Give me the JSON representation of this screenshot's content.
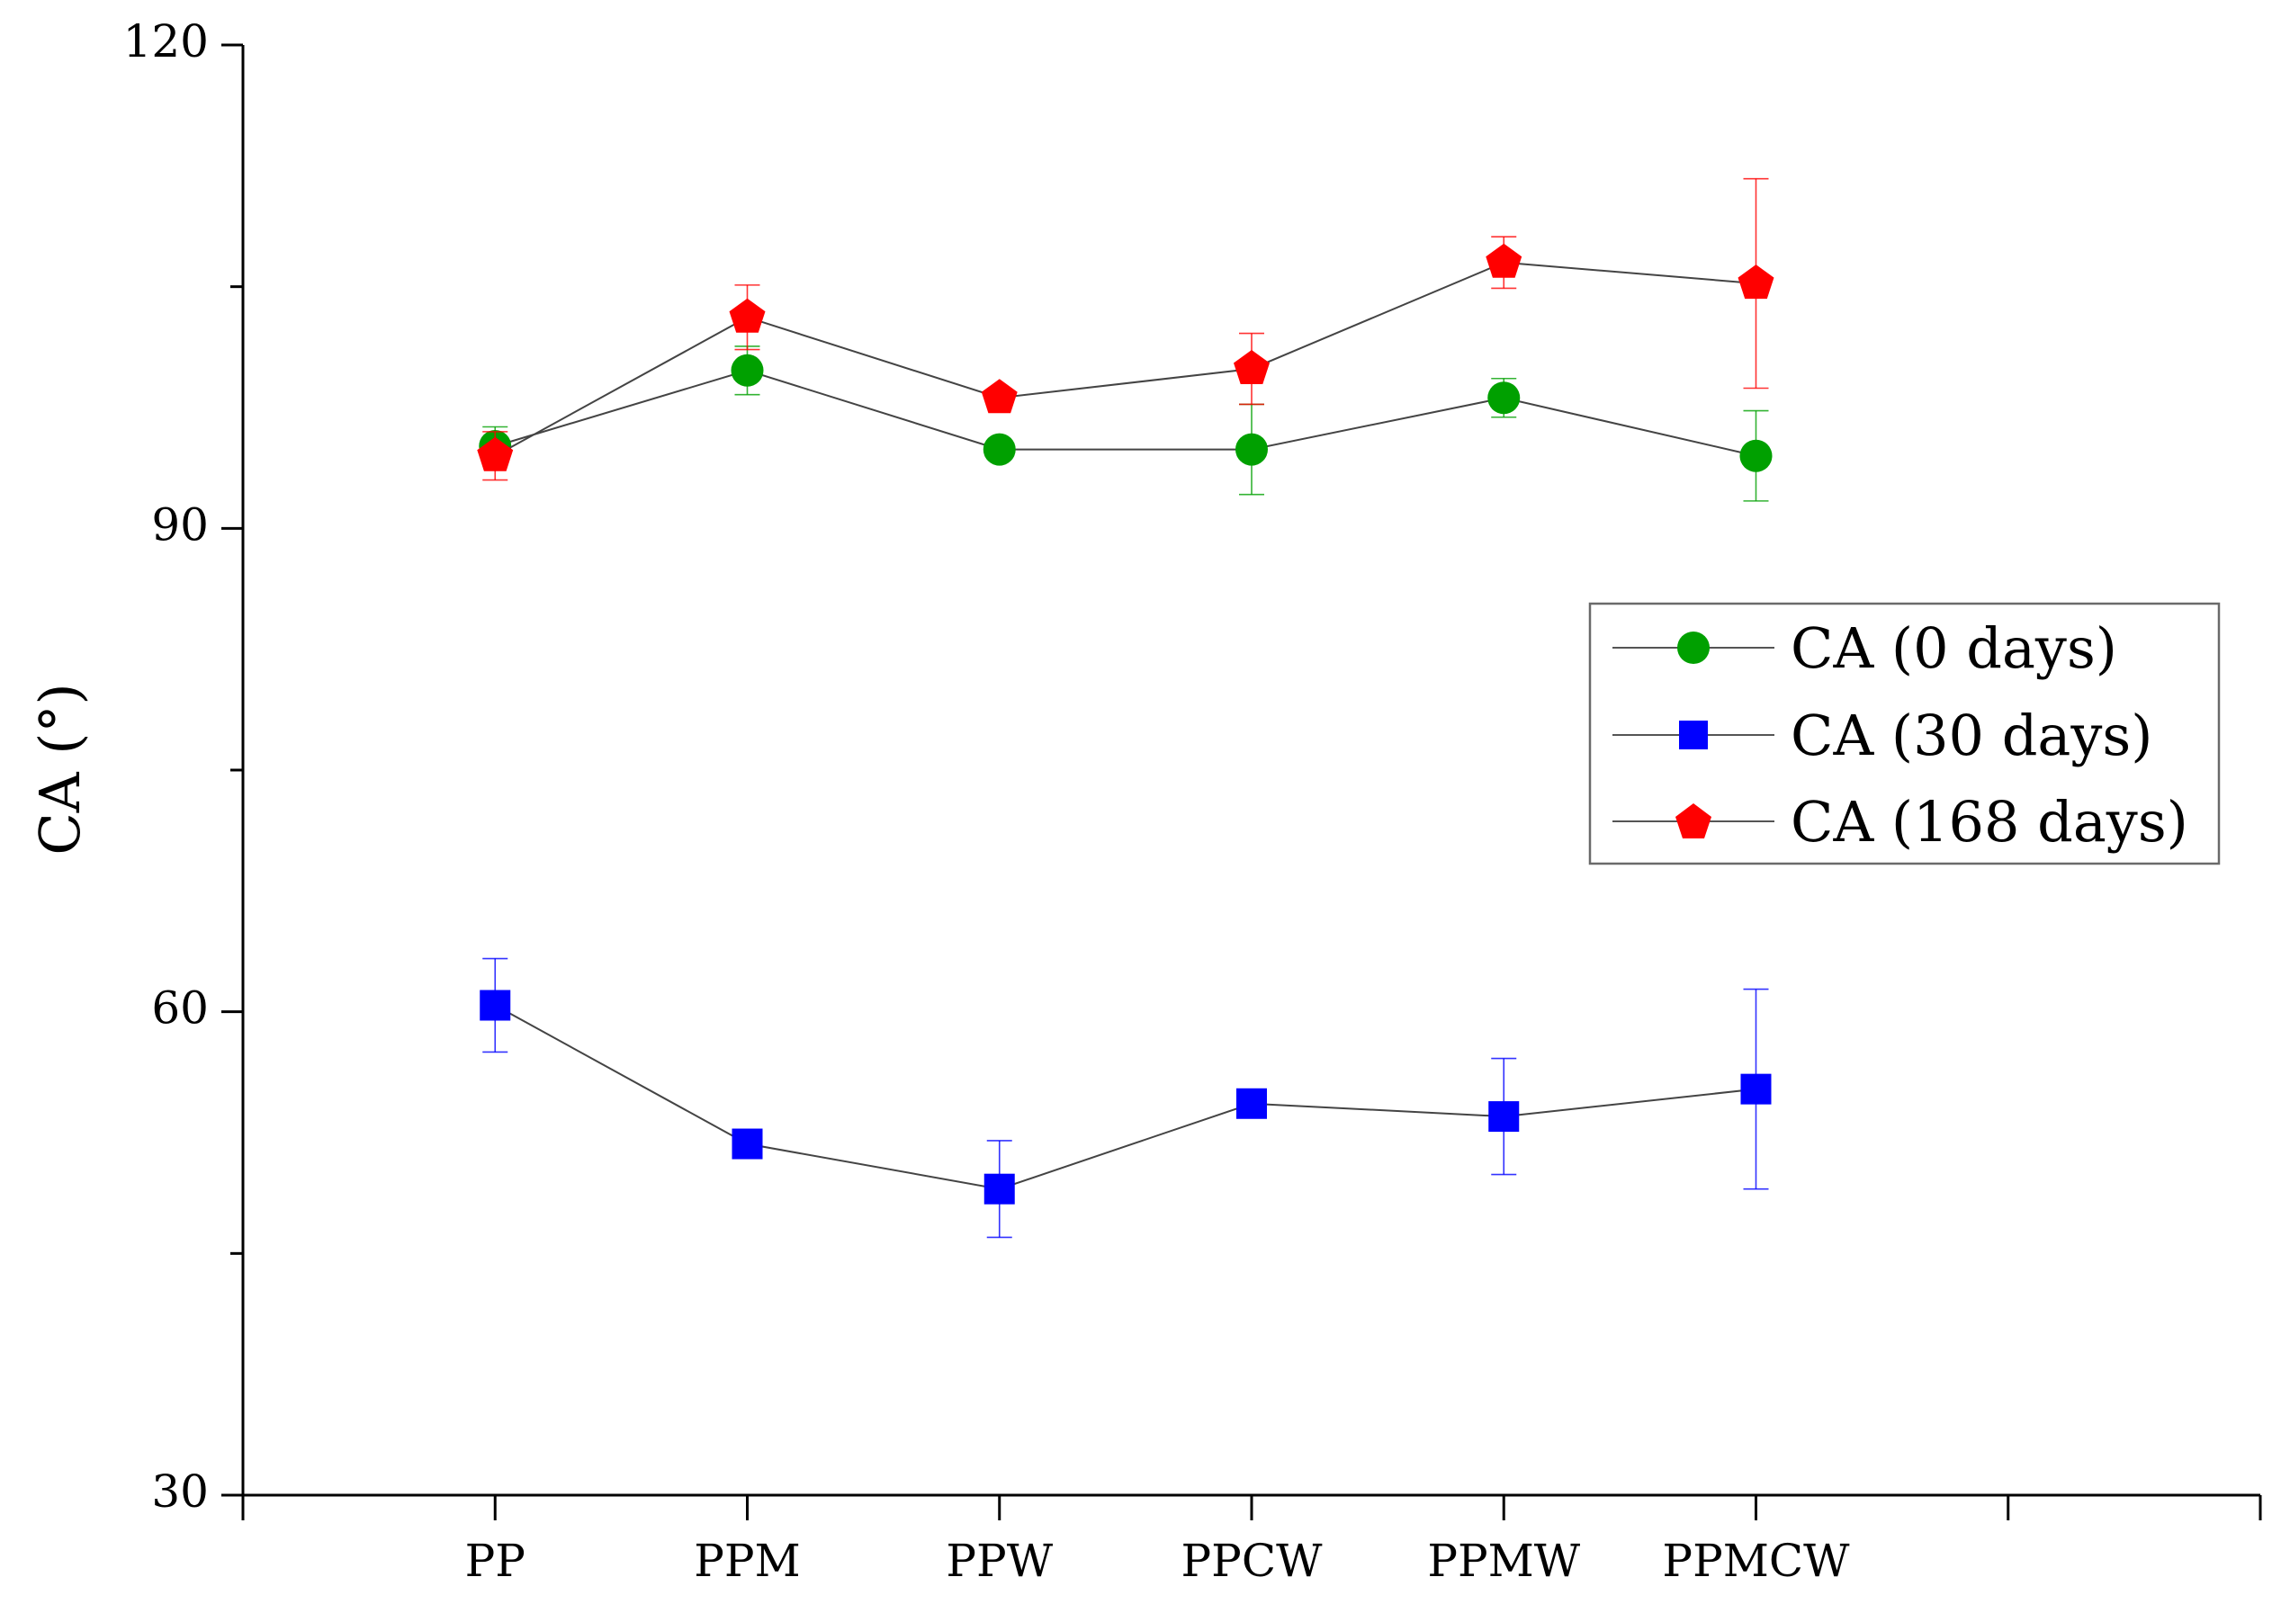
{
  "chart_data": {
    "type": "line",
    "title": "",
    "xlabel": "",
    "ylabel": "CA (°)",
    "ylim": [
      30,
      120
    ],
    "yticks": [
      30,
      60,
      90,
      120
    ],
    "categories": [
      "PP",
      "PPM",
      "PPW",
      "PPCW",
      "PPMW",
      "PPMCW"
    ],
    "x_slots": 8,
    "legend_position": "right",
    "series": [
      {
        "name": "CA (0 days)",
        "marker": "circle",
        "color": "#00a000",
        "values": [
          95.1,
          99.8,
          94.9,
          94.9,
          98.1,
          94.5
        ],
        "errors": [
          1.2,
          1.5,
          0.5,
          2.8,
          1.2,
          2.8
        ]
      },
      {
        "name": "CA (30 days)",
        "marker": "square",
        "color": "#0000ff",
        "values": [
          60.4,
          51.8,
          49.0,
          54.3,
          53.5,
          55.2
        ],
        "errors": [
          2.9,
          0.3,
          3.0,
          0.3,
          3.6,
          6.2
        ]
      },
      {
        "name": "CA (168 days)",
        "marker": "pentagon",
        "color": "#ff0000",
        "values": [
          94.5,
          103.1,
          98.1,
          99.9,
          106.5,
          105.2
        ],
        "errors": [
          1.5,
          2.0,
          0.3,
          2.2,
          1.6,
          6.5
        ]
      }
    ]
  }
}
